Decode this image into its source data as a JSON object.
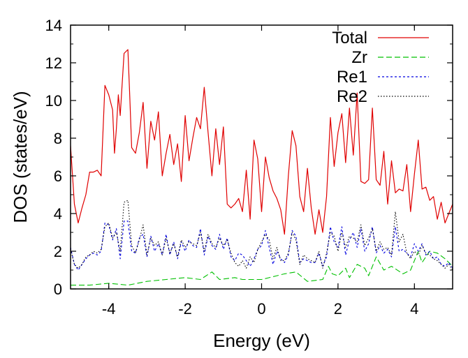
{
  "chart_data": {
    "type": "line",
    "title": "",
    "xlabel": "Energy (eV)",
    "ylabel": "DOS (states/eV)",
    "xlim": [
      -5,
      5
    ],
    "ylim": [
      0,
      14
    ],
    "xticks": [
      -4,
      -2,
      0,
      2,
      4
    ],
    "yticks": [
      0,
      2,
      4,
      6,
      8,
      10,
      12,
      14
    ],
    "legend_position": "top-right",
    "series": [
      {
        "name": "Total",
        "color": "#e00000",
        "dash": "solid",
        "x": [
          -5.0,
          -4.9,
          -4.8,
          -4.7,
          -4.6,
          -4.5,
          -4.4,
          -4.3,
          -4.2,
          -4.1,
          -4.0,
          -3.9,
          -3.85,
          -3.8,
          -3.75,
          -3.7,
          -3.6,
          -3.5,
          -3.45,
          -3.4,
          -3.3,
          -3.2,
          -3.1,
          -3.0,
          -2.9,
          -2.8,
          -2.7,
          -2.6,
          -2.5,
          -2.4,
          -2.3,
          -2.2,
          -2.1,
          -2.0,
          -1.9,
          -1.8,
          -1.7,
          -1.6,
          -1.5,
          -1.4,
          -1.3,
          -1.2,
          -1.1,
          -1.0,
          -0.9,
          -0.8,
          -0.7,
          -0.6,
          -0.5,
          -0.4,
          -0.3,
          -0.2,
          -0.1,
          0.0,
          0.1,
          0.2,
          0.3,
          0.4,
          0.5,
          0.6,
          0.7,
          0.8,
          0.9,
          1.0,
          1.1,
          1.2,
          1.3,
          1.4,
          1.5,
          1.6,
          1.7,
          1.8,
          1.9,
          2.0,
          2.1,
          2.2,
          2.3,
          2.4,
          2.5,
          2.6,
          2.7,
          2.8,
          2.9,
          3.0,
          3.1,
          3.2,
          3.3,
          3.4,
          3.5,
          3.6,
          3.7,
          3.8,
          3.9,
          4.0,
          4.1,
          4.2,
          4.3,
          4.4,
          4.5,
          4.6,
          4.7,
          4.8,
          4.9,
          5.0
        ],
        "y": [
          7.6,
          4.5,
          3.5,
          4.3,
          5.0,
          6.2,
          6.2,
          6.3,
          6.0,
          10.8,
          10.3,
          9.5,
          7.2,
          8.5,
          10.3,
          9.2,
          12.5,
          12.7,
          10.2,
          7.5,
          7.2,
          8.3,
          9.9,
          6.4,
          8.9,
          7.9,
          9.4,
          6.0,
          7.2,
          8.2,
          6.6,
          7.7,
          5.7,
          9.2,
          6.8,
          8.0,
          9.1,
          8.5,
          10.7,
          8.3,
          6.0,
          8.5,
          6.6,
          8.6,
          4.5,
          4.3,
          4.5,
          4.8,
          4.1,
          6.3,
          3.7,
          7.9,
          6.9,
          4.1,
          7.0,
          5.9,
          5.2,
          4.8,
          4.2,
          2.9,
          6.0,
          8.4,
          7.6,
          4.9,
          4.1,
          6.4,
          4.3,
          2.9,
          4.2,
          3.0,
          4.9,
          9.1,
          6.5,
          8.3,
          9.3,
          6.7,
          9.6,
          7.1,
          10.4,
          5.7,
          5.6,
          5.8,
          9.6,
          5.8,
          5.5,
          7.3,
          4.5,
          6.8,
          5.1,
          5.3,
          5.2,
          6.6,
          4.1,
          6.1,
          7.9,
          5.3,
          5.4,
          4.7,
          4.9,
          3.7,
          4.6,
          3.5,
          4.0,
          4.5
        ]
      },
      {
        "name": "Zr",
        "color": "#00c000",
        "dash": "8,4",
        "x": [
          -5.0,
          -4.5,
          -4.0,
          -3.5,
          -3.0,
          -2.5,
          -2.0,
          -1.6,
          -1.3,
          -1.1,
          -0.7,
          -0.5,
          0.0,
          0.4,
          0.6,
          0.9,
          1.2,
          1.6,
          1.75,
          1.85,
          2.0,
          2.2,
          2.3,
          2.5,
          2.7,
          2.8,
          3.0,
          3.2,
          3.4,
          3.7,
          3.9,
          4.1,
          4.2,
          4.4,
          4.6,
          4.8,
          5.0
        ],
        "y": [
          0.2,
          0.2,
          0.3,
          0.2,
          0.4,
          0.5,
          0.6,
          0.5,
          0.9,
          0.5,
          0.6,
          0.5,
          0.5,
          0.7,
          0.8,
          0.9,
          0.4,
          0.5,
          1.2,
          0.8,
          0.7,
          1.1,
          0.6,
          1.3,
          1.1,
          0.7,
          1.7,
          1.0,
          1.2,
          0.8,
          1.0,
          2.0,
          1.4,
          2.0,
          1.9,
          1.6,
          1.2
        ]
      },
      {
        "name": "Re1",
        "color": "#0000e0",
        "dash": "3,3",
        "x": [
          -5.0,
          -4.9,
          -4.8,
          -4.7,
          -4.6,
          -4.5,
          -4.4,
          -4.3,
          -4.2,
          -4.1,
          -4.0,
          -3.9,
          -3.8,
          -3.7,
          -3.6,
          -3.5,
          -3.4,
          -3.3,
          -3.2,
          -3.1,
          -3.0,
          -2.9,
          -2.8,
          -2.7,
          -2.6,
          -2.5,
          -2.4,
          -2.3,
          -2.2,
          -2.1,
          -2.0,
          -1.9,
          -1.8,
          -1.7,
          -1.6,
          -1.5,
          -1.4,
          -1.3,
          -1.2,
          -1.1,
          -1.0,
          -0.9,
          -0.8,
          -0.7,
          -0.6,
          -0.5,
          -0.4,
          -0.3,
          -0.2,
          -0.1,
          0.0,
          0.1,
          0.2,
          0.3,
          0.4,
          0.5,
          0.6,
          0.7,
          0.8,
          0.9,
          1.0,
          1.1,
          1.2,
          1.3,
          1.4,
          1.5,
          1.6,
          1.7,
          1.8,
          1.9,
          2.0,
          2.1,
          2.2,
          2.3,
          2.4,
          2.5,
          2.6,
          2.7,
          2.8,
          2.9,
          3.0,
          3.1,
          3.2,
          3.3,
          3.4,
          3.5,
          3.6,
          3.7,
          3.8,
          3.9,
          4.0,
          4.1,
          4.2,
          4.3,
          4.4,
          4.5,
          4.6,
          4.7,
          4.8,
          4.9,
          5.0
        ],
        "y": [
          2.2,
          1.3,
          1.0,
          1.3,
          1.6,
          1.8,
          1.9,
          1.8,
          2.0,
          3.5,
          3.4,
          2.6,
          3.2,
          1.6,
          3.6,
          3.6,
          2.0,
          1.9,
          2.7,
          2.9,
          1.7,
          2.8,
          2.0,
          2.4,
          1.8,
          2.9,
          1.8,
          2.5,
          1.6,
          2.5,
          2.0,
          2.6,
          2.3,
          2.2,
          3.2,
          1.8,
          2.8,
          2.3,
          2.1,
          2.9,
          2.1,
          2.7,
          1.7,
          1.5,
          1.9,
          1.8,
          1.5,
          1.2,
          1.6,
          2.1,
          2.3,
          3.1,
          2.2,
          1.3,
          2.0,
          1.6,
          1.4,
          1.8,
          3.1,
          2.8,
          1.4,
          1.6,
          1.5,
          1.4,
          1.4,
          1.9,
          1.2,
          1.7,
          3.3,
          2.5,
          2.2,
          3.3,
          1.8,
          2.6,
          3.0,
          2.2,
          3.2,
          2.0,
          2.4,
          3.3,
          1.9,
          2.3,
          1.9,
          2.1,
          1.7,
          3.3,
          2.0,
          2.1,
          1.9,
          1.7,
          2.4,
          2.0,
          2.4,
          1.8,
          2.0,
          1.6,
          1.7,
          1.3,
          1.2,
          1.4,
          1.1
        ]
      },
      {
        "name": "Re2",
        "color": "#000000",
        "dash": "1.5,2.5",
        "x": [
          -5.0,
          -4.9,
          -4.8,
          -4.7,
          -4.6,
          -4.5,
          -4.4,
          -4.3,
          -4.2,
          -4.1,
          -4.0,
          -3.9,
          -3.8,
          -3.7,
          -3.6,
          -3.5,
          -3.4,
          -3.3,
          -3.2,
          -3.1,
          -3.0,
          -2.9,
          -2.8,
          -2.7,
          -2.6,
          -2.5,
          -2.4,
          -2.3,
          -2.2,
          -2.1,
          -2.0,
          -1.9,
          -1.8,
          -1.7,
          -1.6,
          -1.5,
          -1.4,
          -1.3,
          -1.2,
          -1.1,
          -1.0,
          -0.9,
          -0.8,
          -0.7,
          -0.6,
          -0.5,
          -0.4,
          -0.3,
          -0.2,
          -0.1,
          0.0,
          0.1,
          0.2,
          0.3,
          0.4,
          0.5,
          0.6,
          0.7,
          0.8,
          0.9,
          1.0,
          1.1,
          1.2,
          1.3,
          1.4,
          1.5,
          1.6,
          1.7,
          1.8,
          1.9,
          2.0,
          2.1,
          2.2,
          2.3,
          2.4,
          2.5,
          2.6,
          2.7,
          2.8,
          2.9,
          3.0,
          3.1,
          3.2,
          3.3,
          3.4,
          3.5,
          3.6,
          3.7,
          3.8,
          3.9,
          4.0,
          4.1,
          4.2,
          4.3,
          4.4,
          4.5,
          4.6,
          4.7,
          4.8,
          4.9,
          5.0
        ],
        "y": [
          2.1,
          1.3,
          1.1,
          1.3,
          1.7,
          1.8,
          2.0,
          1.9,
          2.1,
          3.3,
          3.5,
          2.7,
          3.0,
          2.0,
          4.6,
          4.7,
          2.3,
          1.9,
          2.6,
          3.4,
          1.8,
          2.7,
          2.3,
          2.5,
          1.8,
          2.7,
          1.9,
          2.4,
          1.7,
          2.6,
          2.2,
          2.5,
          2.4,
          2.3,
          3.0,
          2.0,
          2.9,
          2.4,
          2.2,
          2.7,
          2.3,
          2.6,
          1.9,
          1.4,
          1.2,
          1.5,
          1.1,
          1.7,
          1.4,
          2.1,
          2.5,
          2.9,
          2.6,
          1.6,
          2.2,
          1.5,
          1.5,
          1.9,
          3.0,
          2.6,
          1.3,
          1.8,
          1.6,
          1.5,
          1.4,
          2.0,
          1.1,
          1.9,
          3.0,
          2.8,
          2.0,
          3.0,
          2.2,
          2.8,
          2.7,
          2.5,
          3.4,
          2.3,
          2.7,
          3.2,
          2.0,
          2.5,
          2.1,
          2.2,
          1.8,
          4.1,
          2.5,
          2.9,
          1.9,
          1.6,
          2.0,
          1.8,
          2.3,
          1.9,
          1.8,
          1.6,
          1.5,
          1.3,
          1.1,
          1.3,
          1.0
        ]
      }
    ]
  }
}
